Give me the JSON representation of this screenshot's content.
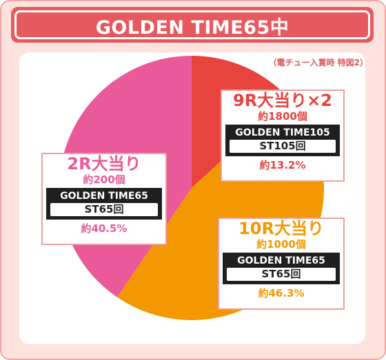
{
  "header": {
    "title": "GOLDEN TIME65中"
  },
  "note": "（電チュー入賞時 特図2）",
  "colors": {
    "red": "#e8433d",
    "orange": "#f39800",
    "pink": "#ea5a9a",
    "title": "#e65a5f"
  },
  "labels": {
    "nine_r": {
      "title": "9R大当り×2",
      "amount": "約1800個",
      "gt": "GOLDEN TIME105",
      "st": "ST105回",
      "pct": "約13.2%"
    },
    "two_r": {
      "title": "2R大当り",
      "amount": "約200個",
      "gt": "GOLDEN TIME65",
      "st": "ST65回",
      "pct": "約40.5%"
    },
    "ten_r": {
      "title": "10R大当り",
      "amount": "約1000個",
      "gt": "GOLDEN TIME65",
      "st": "ST65回",
      "pct": "約46.3%"
    }
  },
  "chart_data": {
    "type": "pie",
    "start_angle_deg": 0,
    "direction": "clockwise",
    "slices": [
      {
        "label": "9R大当り×2",
        "value": 13.2,
        "color": "#e8433d"
      },
      {
        "label": "10R大当り",
        "value": 46.3,
        "color": "#f39800"
      },
      {
        "label": "2R大当り",
        "value": 40.5,
        "color": "#ea5a9a"
      }
    ]
  }
}
